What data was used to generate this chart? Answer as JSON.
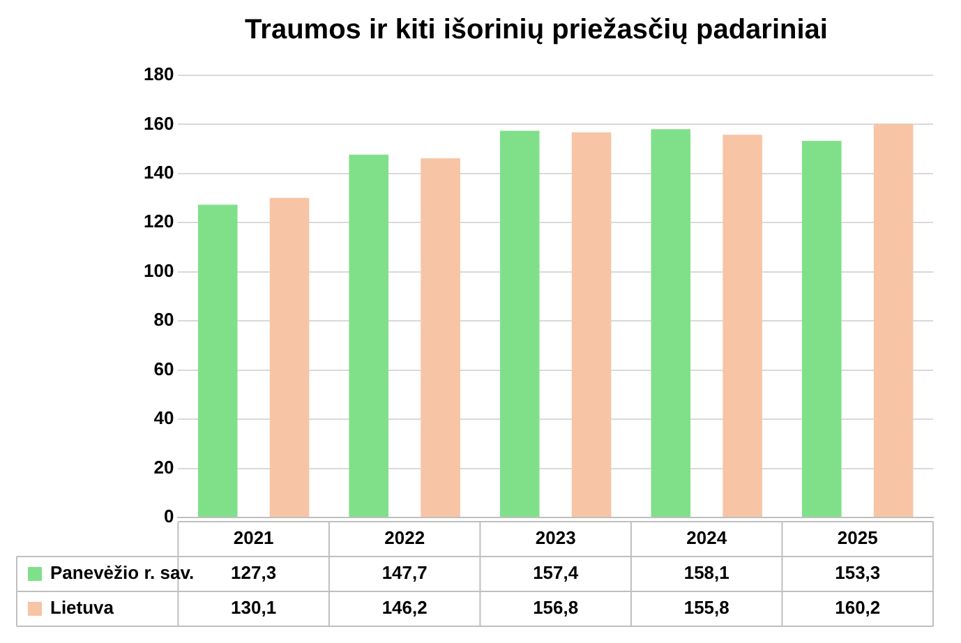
{
  "chart_data": {
    "type": "bar",
    "title": "Traumos ir kiti išorinių priežasčių padariniai",
    "categories": [
      "2021",
      "2022",
      "2023",
      "2024",
      "2025"
    ],
    "series": [
      {
        "name": "Panevėžio r. sav.",
        "color": "#80e08a",
        "values": [
          127.3,
          147.7,
          157.4,
          158.1,
          153.3
        ],
        "value_labels": [
          "127,3",
          "147,7",
          "157,4",
          "158,1",
          "153,3"
        ]
      },
      {
        "name": "Lietuva",
        "color": "#f7c4a5",
        "values": [
          130.1,
          146.2,
          156.8,
          155.8,
          160.2
        ],
        "value_labels": [
          "130,1",
          "146,2",
          "156,8",
          "155,8",
          "160,2"
        ]
      }
    ],
    "ylim": [
      0,
      180
    ],
    "yticks": [
      0,
      20,
      40,
      60,
      80,
      100,
      120,
      140,
      160,
      180
    ],
    "grid": "y",
    "legend": "bottom"
  }
}
